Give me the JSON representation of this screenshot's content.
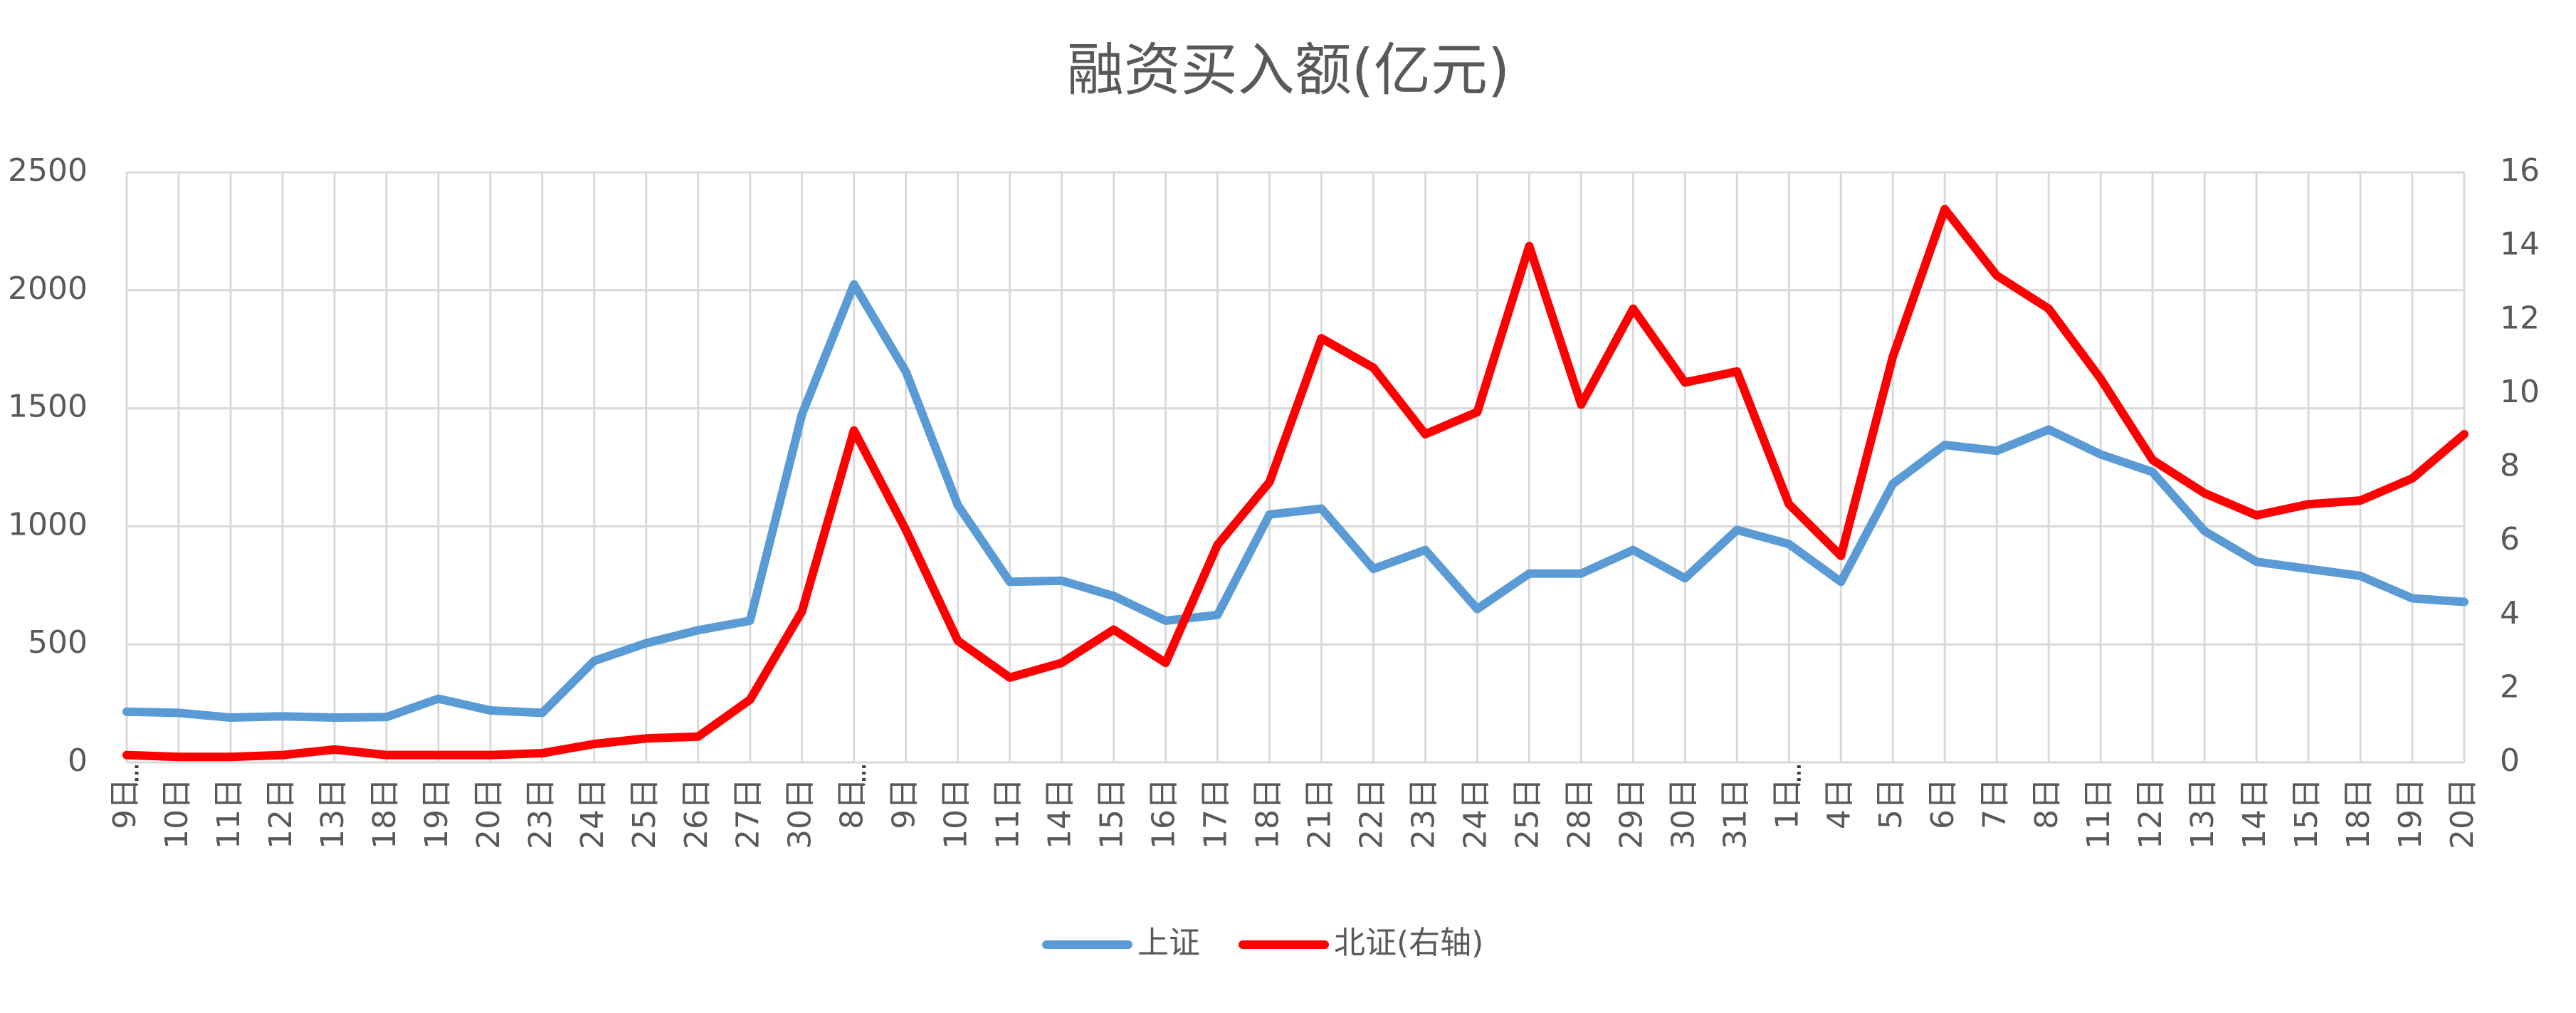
{
  "chart_data": {
    "type": "line",
    "title": "融资买入额(亿元)",
    "categories": [
      "9日",
      "10日",
      "11日",
      "12日",
      "13日",
      "18日",
      "19日",
      "20日",
      "23日",
      "24日",
      "25日",
      "26日",
      "27日",
      "30日",
      "8日",
      "9日",
      "10日",
      "11日",
      "14日",
      "15日",
      "16日",
      "17日",
      "18日",
      "21日",
      "22日",
      "23日",
      "24日",
      "25日",
      "28日",
      "29日",
      "30日",
      "31日",
      "1日",
      "4日",
      "5日",
      "6日",
      "7日",
      "8日",
      "11日",
      "12日",
      "13日",
      "14日",
      "15日",
      "18日",
      "19日",
      "20日"
    ],
    "series": [
      {
        "name": "上证",
        "color": "#5b9bd5",
        "values": [
          215,
          210,
          190,
          195,
          190,
          192,
          270,
          220,
          210,
          430,
          505,
          560,
          600,
          1475,
          2025,
          1655,
          1090,
          765,
          770,
          705,
          600,
          625,
          1050,
          1075,
          820,
          900,
          650,
          800,
          800,
          900,
          780,
          985,
          925,
          765,
          1180,
          1345,
          1320,
          1410,
          1305,
          1230,
          980,
          850,
          820,
          790,
          695,
          680
        ]
      },
      {
        "name": "北证(右轴)",
        "color": "#ff0000",
        "axis": "y2",
        "values": [
          0.2,
          0.15,
          0.15,
          0.2,
          0.35,
          0.2,
          0.2,
          0.2,
          0.25,
          0.5,
          0.65,
          0.7,
          1.7,
          4.1,
          9,
          6.3,
          3.3,
          2.3,
          2.7,
          3.6,
          2.7,
          5.9,
          7.6,
          11.5,
          10.7,
          8.9,
          9.5,
          14,
          9.7,
          12.3,
          10.3,
          10.6,
          7,
          5.6,
          11,
          15,
          13.2,
          12.3,
          10.4,
          8.2,
          7.3,
          6.7,
          7,
          7.1,
          7.7,
          8.9
        ]
      }
    ],
    "ylim": [
      0,
      2500
    ],
    "yticks": [
      0,
      500,
      1000,
      1500,
      2000,
      2500
    ],
    "y2lim": [
      0,
      16
    ],
    "y2ticks": [
      0,
      2,
      4,
      6,
      8,
      10,
      12,
      14,
      16
    ],
    "grid": true,
    "legend": "bottom"
  }
}
